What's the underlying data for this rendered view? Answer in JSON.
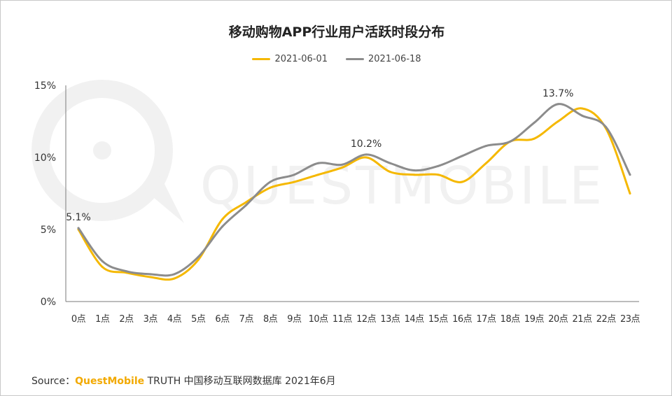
{
  "chart_data": {
    "type": "line",
    "title": "移动购物APP行业用户活跃时段分布",
    "xlabel": "",
    "ylabel": "",
    "categories": [
      "0点",
      "1点",
      "2点",
      "3点",
      "4点",
      "5点",
      "6点",
      "7点",
      "8点",
      "9点",
      "10点",
      "11点",
      "12点",
      "13点",
      "14点",
      "15点",
      "16点",
      "17点",
      "18点",
      "19点",
      "20点",
      "21点",
      "22点",
      "23点"
    ],
    "y_ticks": [
      "0%",
      "5%",
      "10%",
      "15%"
    ],
    "ylim": [
      0,
      15
    ],
    "grid": false,
    "legend_position": "top-center",
    "series": [
      {
        "name": "2021-06-01",
        "color": "#f5b800",
        "values": [
          5.0,
          2.4,
          2.0,
          1.7,
          1.6,
          2.9,
          5.7,
          6.9,
          7.9,
          8.3,
          8.8,
          9.3,
          10.0,
          9.0,
          8.8,
          8.8,
          8.3,
          9.6,
          11.1,
          11.3,
          12.5,
          13.4,
          12.0,
          7.5
        ]
      },
      {
        "name": "2021-06-18",
        "color": "#8c8c8c",
        "values": [
          5.1,
          2.8,
          2.1,
          1.9,
          1.9,
          3.1,
          5.2,
          6.7,
          8.3,
          8.8,
          9.6,
          9.5,
          10.2,
          9.6,
          9.1,
          9.4,
          10.1,
          10.8,
          11.1,
          12.4,
          13.7,
          12.9,
          12.1,
          8.8
        ]
      }
    ],
    "annotations": [
      {
        "text": "5.1%",
        "x": "0点",
        "y": 5.1
      },
      {
        "text": "10.2%",
        "x": "12点",
        "y": 10.2
      },
      {
        "text": "13.7%",
        "x": "20点",
        "y": 13.7
      }
    ]
  },
  "watermark_text": "QUESTMOBILE",
  "source": {
    "prefix": "Source：",
    "brand": "QuestMobile",
    "rest": "TRUTH 中国移动互联网数据库 2021年6月"
  }
}
